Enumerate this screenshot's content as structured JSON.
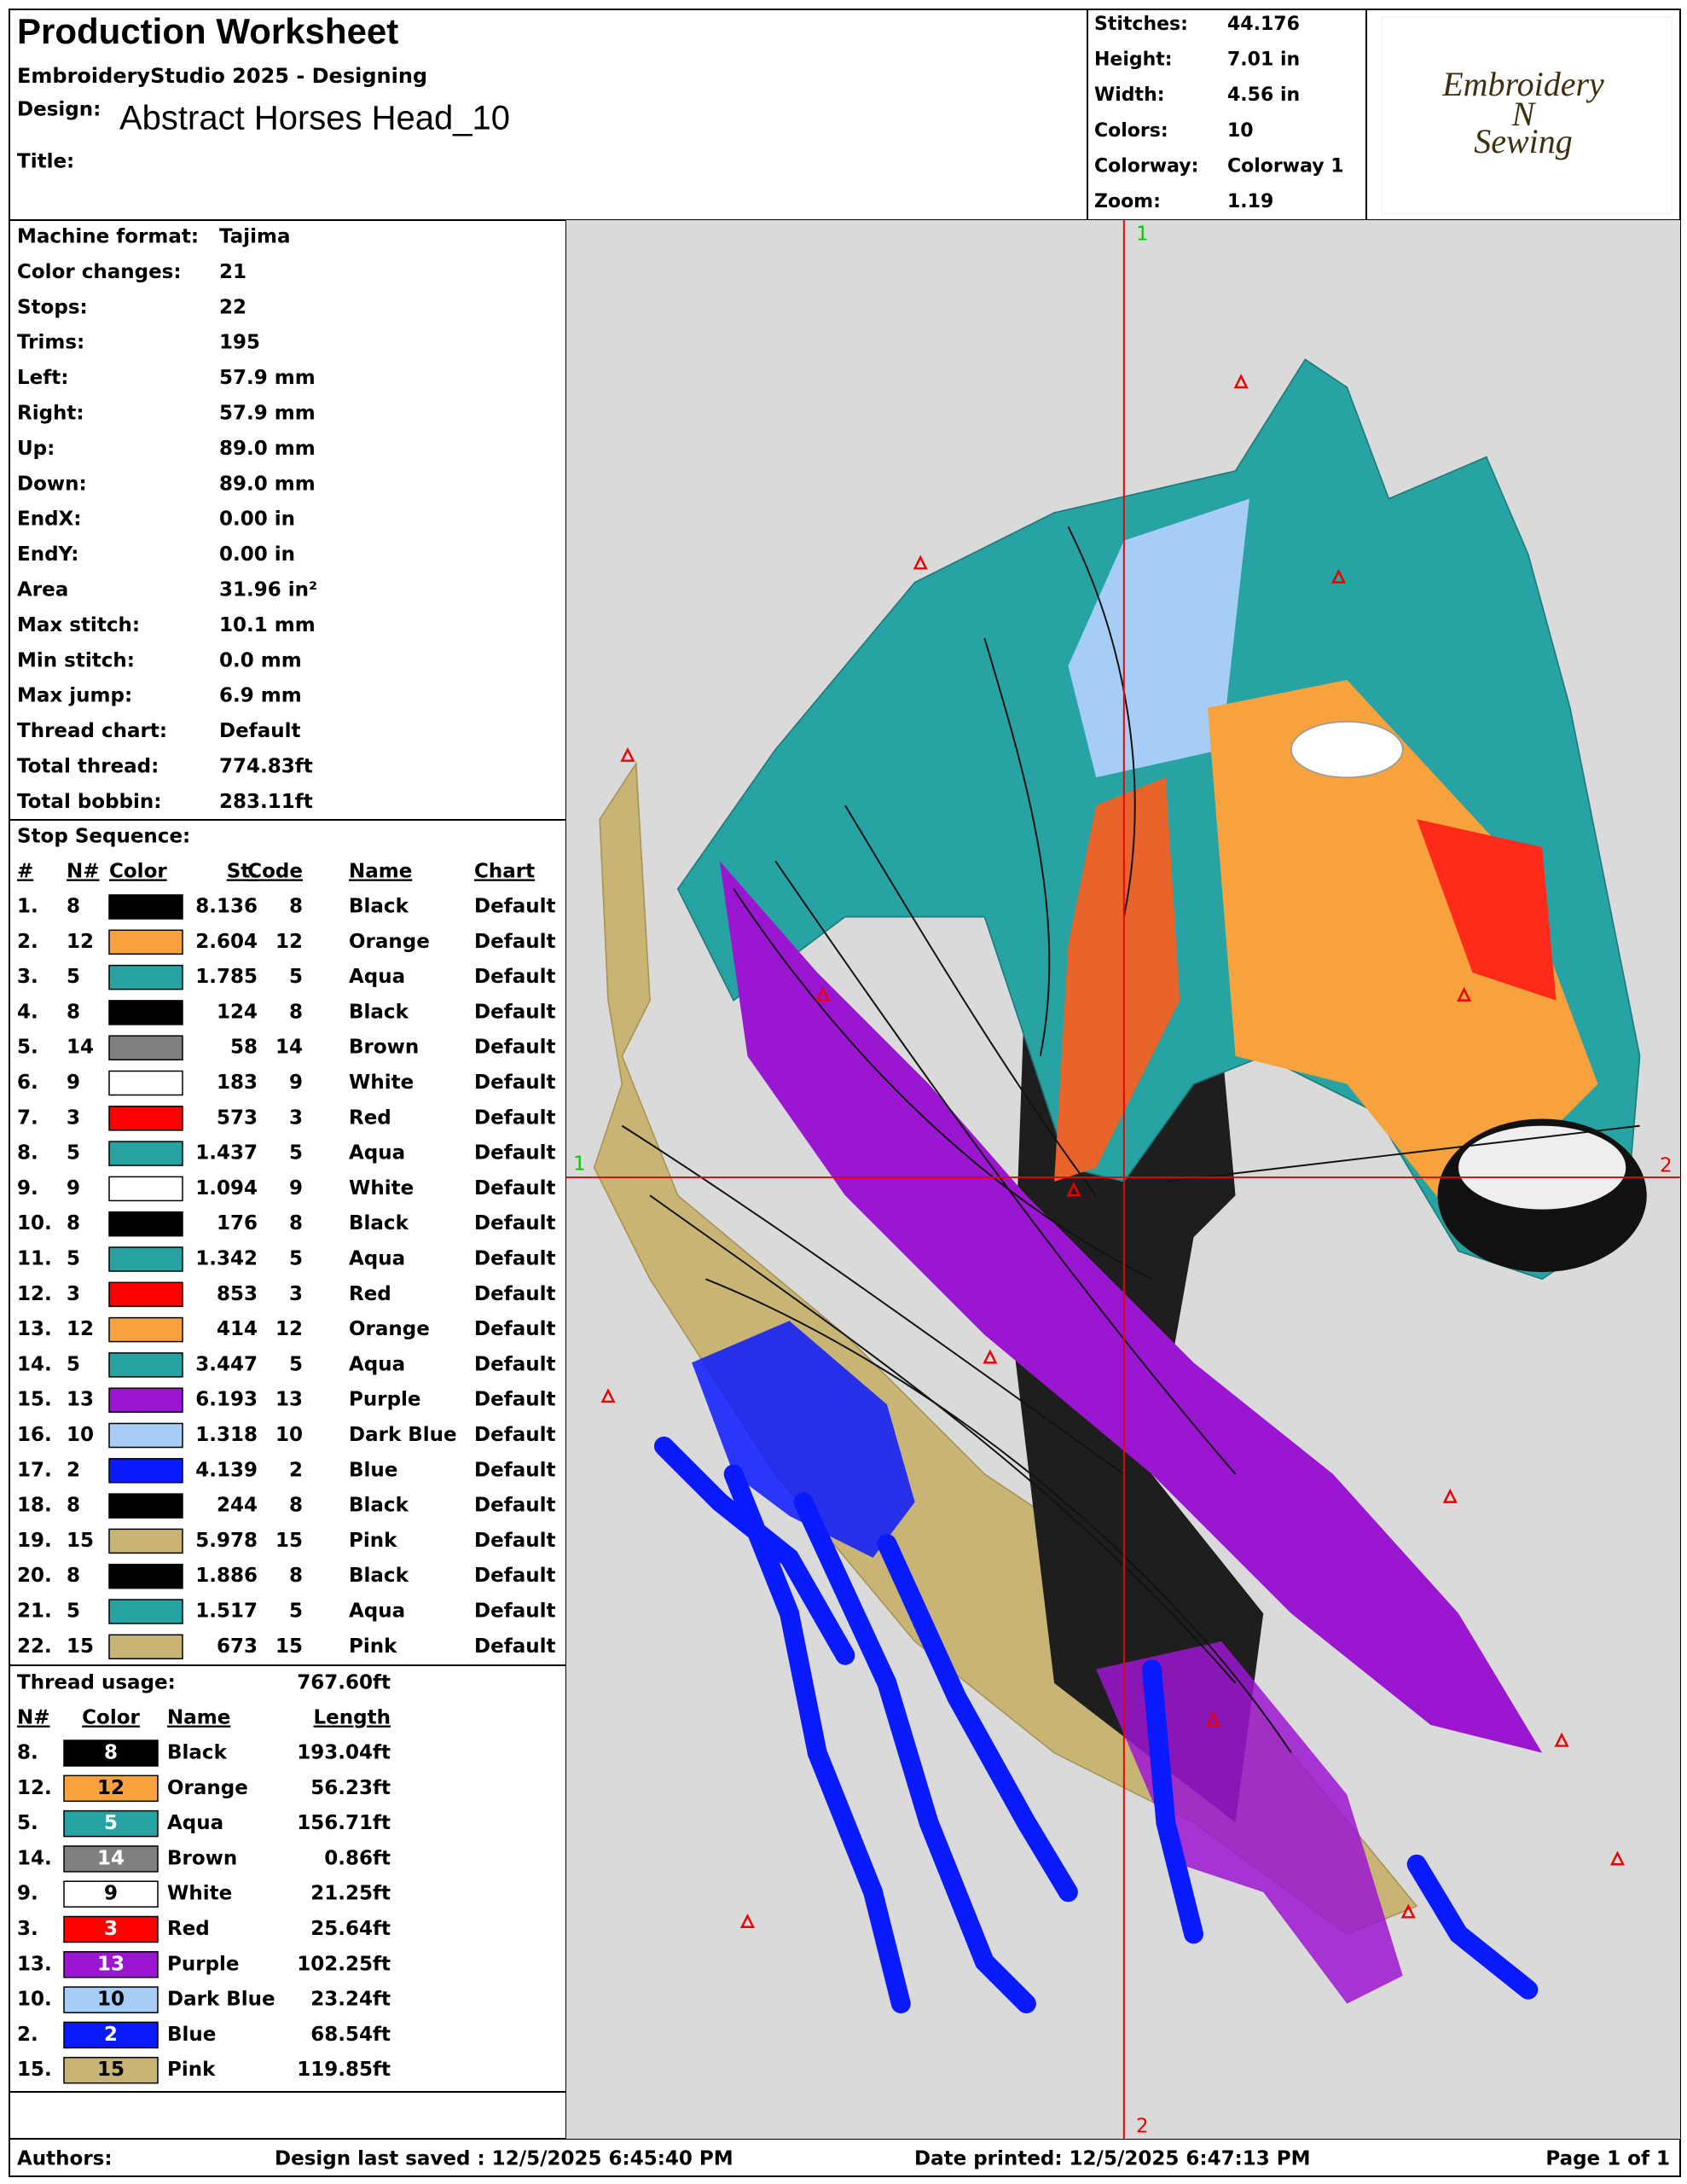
{
  "header": {
    "title": "Production Worksheet",
    "software": "EmbroideryStudio 2025 - Designing",
    "design_label": "Design:",
    "design_name": "Abstract Horses Head_10",
    "title_label": "Title:"
  },
  "stats": [
    [
      "Stitches:",
      "44.176"
    ],
    [
      "Height:",
      "7.01 in"
    ],
    [
      "Width:",
      "4.56 in"
    ],
    [
      "Colors:",
      "10"
    ],
    [
      "Colorway:",
      "Colorway 1"
    ],
    [
      "Zoom:",
      "1.19"
    ]
  ],
  "logo": [
    "Embroidery",
    "N",
    "Sewing"
  ],
  "machine_info": [
    [
      "Machine format:",
      "Tajima"
    ],
    [
      "Color changes:",
      "21"
    ],
    [
      "Stops:",
      "22"
    ],
    [
      "Trims:",
      "195"
    ],
    [
      "Left:",
      "57.9 mm"
    ],
    [
      "Right:",
      "57.9 mm"
    ],
    [
      "Up:",
      "89.0 mm"
    ],
    [
      "Down:",
      "89.0 mm"
    ],
    [
      "EndX:",
      "0.00 in"
    ],
    [
      "EndY:",
      "0.00 in"
    ],
    [
      "Area",
      "31.96 in²"
    ],
    [
      "Max stitch:",
      "10.1 mm"
    ],
    [
      "Min stitch:",
      "0.0 mm"
    ],
    [
      "Max jump:",
      "6.9 mm"
    ],
    [
      "Thread chart:",
      "Default"
    ],
    [
      "Total thread:",
      "774.83ft"
    ],
    [
      "Total bobbin:",
      "283.11ft"
    ]
  ],
  "stop_sequence": {
    "title": "Stop Sequence:",
    "headers": [
      "#",
      "N#",
      "Color",
      "St.",
      "Code",
      "Name",
      "Chart"
    ],
    "rows": [
      [
        "1.",
        "8",
        "#000000",
        "8.136",
        "8",
        "Black",
        "Default"
      ],
      [
        "2.",
        "12",
        "#f7a23c",
        "2.604",
        "12",
        "Orange",
        "Default"
      ],
      [
        "3.",
        "5",
        "#27a3a3",
        "1.785",
        "5",
        "Aqua",
        "Default"
      ],
      [
        "4.",
        "8",
        "#000000",
        "124",
        "8",
        "Black",
        "Default"
      ],
      [
        "5.",
        "14",
        "#808080",
        "58",
        "14",
        "Brown",
        "Default"
      ],
      [
        "6.",
        "9",
        "#ffffff",
        "183",
        "9",
        "White",
        "Default"
      ],
      [
        "7.",
        "3",
        "#ff0000",
        "573",
        "3",
        "Red",
        "Default"
      ],
      [
        "8.",
        "5",
        "#27a3a3",
        "1.437",
        "5",
        "Aqua",
        "Default"
      ],
      [
        "9.",
        "9",
        "#ffffff",
        "1.094",
        "9",
        "White",
        "Default"
      ],
      [
        "10.",
        "8",
        "#000000",
        "176",
        "8",
        "Black",
        "Default"
      ],
      [
        "11.",
        "5",
        "#27a3a3",
        "1.342",
        "5",
        "Aqua",
        "Default"
      ],
      [
        "12.",
        "3",
        "#ff0000",
        "853",
        "3",
        "Red",
        "Default"
      ],
      [
        "13.",
        "12",
        "#f7a23c",
        "414",
        "12",
        "Orange",
        "Default"
      ],
      [
        "14.",
        "5",
        "#27a3a3",
        "3.447",
        "5",
        "Aqua",
        "Default"
      ],
      [
        "15.",
        "13",
        "#9b16d1",
        "6.193",
        "13",
        "Purple",
        "Default"
      ],
      [
        "16.",
        "10",
        "#a6cdf5",
        "1.318",
        "10",
        "Dark Blue",
        "Default"
      ],
      [
        "17.",
        "2",
        "#0a1aff",
        "4.139",
        "2",
        "Blue",
        "Default"
      ],
      [
        "18.",
        "8",
        "#000000",
        "244",
        "8",
        "Black",
        "Default"
      ],
      [
        "19.",
        "15",
        "#c8b475",
        "5.978",
        "15",
        "Pink",
        "Default"
      ],
      [
        "20.",
        "8",
        "#000000",
        "1.886",
        "8",
        "Black",
        "Default"
      ],
      [
        "21.",
        "5",
        "#27a3a3",
        "1.517",
        "5",
        "Aqua",
        "Default"
      ],
      [
        "22.",
        "15",
        "#c8b475",
        "673",
        "15",
        "Pink",
        "Default"
      ]
    ]
  },
  "thread_usage": {
    "title": "Thread usage:",
    "total": "767.60ft",
    "headers": [
      "N#",
      "Color",
      "Name",
      "Length"
    ],
    "rows": [
      [
        "8.",
        "8",
        "#000000",
        "Black",
        "193.04ft"
      ],
      [
        "12.",
        "12",
        "#f7a23c",
        "Orange",
        "56.23ft"
      ],
      [
        "5.",
        "5",
        "#27a3a3",
        "Aqua",
        "156.71ft"
      ],
      [
        "14.",
        "14",
        "#808080",
        "Brown",
        "0.86ft"
      ],
      [
        "9.",
        "9",
        "#ffffff",
        "White",
        "21.25ft"
      ],
      [
        "3.",
        "3",
        "#ff0000",
        "Red",
        "25.64ft"
      ],
      [
        "13.",
        "13",
        "#9b16d1",
        "Purple",
        "102.25ft"
      ],
      [
        "10.",
        "10",
        "#a6cdf5",
        "Dark Blue",
        "23.24ft"
      ],
      [
        "2.",
        "2",
        "#0a1aff",
        "Blue",
        "68.54ft"
      ],
      [
        "15.",
        "15",
        "#c8b475",
        "Pink",
        "119.85ft"
      ]
    ]
  },
  "canvas": {
    "top_marker": "1",
    "bottom_marker": "2",
    "left_marker": "1",
    "right_marker": "2"
  },
  "footer": {
    "authors": "Authors:",
    "saved": "Design last saved : 12/5/2025 6:45:40 PM",
    "printed": "Date printed: 12/5/2025 6:47:13 PM",
    "page": "Page 1 of 1"
  }
}
